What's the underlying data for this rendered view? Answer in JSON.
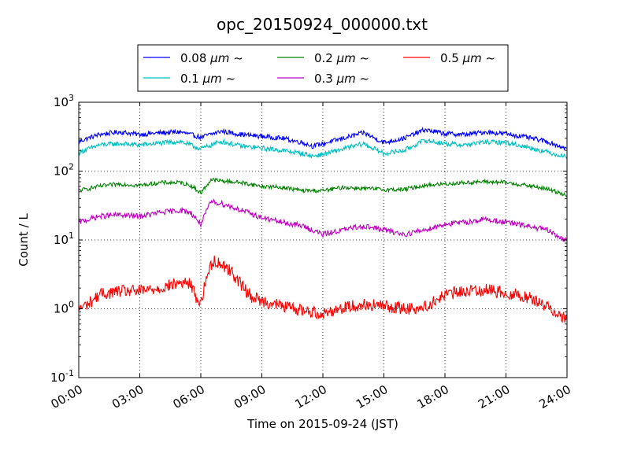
{
  "chart_data": {
    "type": "line",
    "title": "opc_20150924_000000.txt",
    "xlabel": "Time on 2015-09-24 (JST)",
    "ylabel": "Count / L",
    "x_range_hours": [
      0,
      24
    ],
    "x_ticks": [
      {
        "hour": 0,
        "label": "00:00"
      },
      {
        "hour": 3,
        "label": "03:00"
      },
      {
        "hour": 6,
        "label": "06:00"
      },
      {
        "hour": 9,
        "label": "09:00"
      },
      {
        "hour": 12,
        "label": "12:00"
      },
      {
        "hour": 15,
        "label": "15:00"
      },
      {
        "hour": 18,
        "label": "18:00"
      },
      {
        "hour": 21,
        "label": "21:00"
      },
      {
        "hour": 24,
        "label": "24:00"
      }
    ],
    "y_scale": "log",
    "y_range": [
      0.1,
      1000
    ],
    "y_ticks": [
      {
        "value": 0.1,
        "base": "10",
        "exp": "-1"
      },
      {
        "value": 1,
        "base": "10",
        "exp": "0"
      },
      {
        "value": 10,
        "base": "10",
        "exp": "1"
      },
      {
        "value": 100,
        "base": "10",
        "exp": "2"
      },
      {
        "value": 1000,
        "base": "10",
        "exp": "3"
      }
    ],
    "grid": true,
    "legend_placement": "top-center, above plot",
    "legend_columns": 3,
    "series": [
      {
        "name": "0.08 μm ~",
        "label_size": "0.08",
        "label_unit": "μm",
        "label_suffix": "~",
        "color": "#0000ff",
        "x": [
          0,
          1,
          2,
          3,
          4,
          5,
          6,
          7,
          8,
          9,
          10,
          11,
          11.5,
          12,
          13,
          14,
          15,
          16,
          17,
          18,
          19,
          20,
          21,
          22,
          23,
          24
        ],
        "y": [
          270,
          340,
          370,
          340,
          360,
          370,
          310,
          380,
          340,
          320,
          300,
          260,
          230,
          250,
          300,
          360,
          260,
          300,
          400,
          350,
          340,
          370,
          350,
          310,
          270,
          210
        ]
      },
      {
        "name": "0.1 μm ~",
        "label_size": "0.1",
        "label_unit": "μm",
        "label_suffix": "~",
        "color": "#00bfbf",
        "x": [
          0,
          1,
          2,
          3,
          4,
          5,
          6,
          7,
          8,
          9,
          10,
          11,
          11.5,
          12,
          13,
          14,
          15,
          16,
          17,
          18,
          19,
          20,
          21,
          22,
          23,
          24
        ],
        "y": [
          185,
          240,
          250,
          240,
          255,
          270,
          210,
          270,
          230,
          215,
          200,
          180,
          165,
          175,
          210,
          250,
          180,
          200,
          280,
          250,
          240,
          265,
          260,
          225,
          190,
          160
        ]
      },
      {
        "name": "0.2 μm ~",
        "label_size": "0.2",
        "label_unit": "μm",
        "label_suffix": "~",
        "color": "#008000",
        "x": [
          0,
          1,
          2,
          3,
          4,
          5,
          5.5,
          6,
          6.5,
          7,
          8,
          9,
          10,
          11,
          12,
          13,
          14,
          15,
          16,
          17,
          18,
          19,
          20,
          21,
          22,
          23,
          24
        ],
        "y": [
          52,
          60,
          65,
          62,
          68,
          68,
          62,
          48,
          75,
          72,
          68,
          60,
          58,
          52,
          52,
          58,
          56,
          54,
          54,
          62,
          65,
          68,
          70,
          68,
          62,
          55,
          45
        ]
      },
      {
        "name": "0.3 μm ~",
        "label_size": "0.3",
        "label_unit": "μm",
        "label_suffix": "~",
        "color": "#bf00bf",
        "x": [
          0,
          1,
          2,
          3,
          4,
          5,
          5.5,
          6,
          6.5,
          7,
          8,
          9,
          10,
          11,
          12,
          13,
          14,
          15,
          16,
          17,
          18,
          19,
          20,
          21,
          22,
          23,
          24
        ],
        "y": [
          18,
          22,
          23,
          22,
          25,
          27,
          25,
          17,
          36,
          34,
          27,
          21,
          18,
          16,
          12,
          14,
          16,
          14,
          12,
          14,
          17,
          18,
          20,
          18,
          16,
          14,
          9.5
        ]
      },
      {
        "name": "0.5 μm ~",
        "label_size": "0.5",
        "label_unit": "μm",
        "label_suffix": "~",
        "color": "#ff0000",
        "x": [
          0,
          0.5,
          1,
          2,
          3,
          4,
          5,
          5.5,
          5.8,
          6,
          6.3,
          6.6,
          7,
          7.5,
          8,
          8.5,
          9,
          10,
          11,
          12,
          13,
          14,
          15,
          16,
          17,
          18,
          19,
          20,
          21,
          22,
          23,
          24
        ],
        "y": [
          1.0,
          1.2,
          1.6,
          1.8,
          1.8,
          2.0,
          2.4,
          2.3,
          1.4,
          1.2,
          3.0,
          5.0,
          4.5,
          3.5,
          2.2,
          1.5,
          1.3,
          1.1,
          0.95,
          0.85,
          1.05,
          1.15,
          1.1,
          1.0,
          1.05,
          1.6,
          1.8,
          1.9,
          1.7,
          1.5,
          1.1,
          0.7
        ]
      }
    ]
  }
}
